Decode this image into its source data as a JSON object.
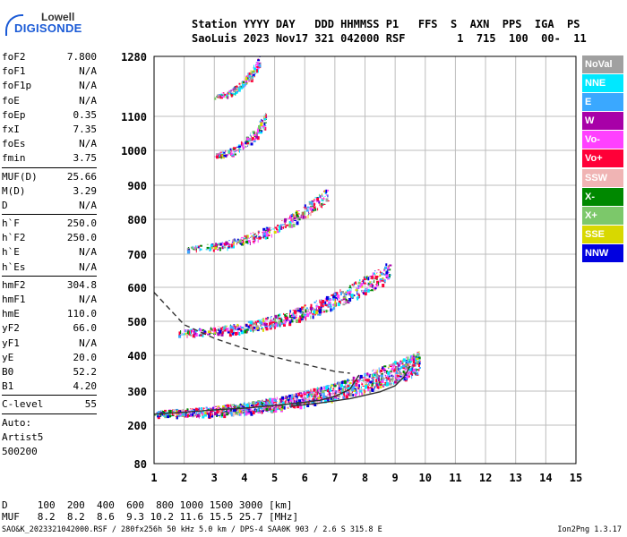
{
  "logo": {
    "line1": "Lowell",
    "line2": "DIGISONDE"
  },
  "header": {
    "line1": "Station YYYY DAY   DDD HHMMSS P1   FFS  S  AXN  PPS  IGA  PS",
    "line2": "SaoLuis 2023 Nov17 321 042000 RSF        1  715  100  00-  11"
  },
  "params": {
    "group1": [
      {
        "k": "foF2",
        "v": "7.800"
      },
      {
        "k": "foF1",
        "v": "N/A"
      },
      {
        "k": "foF1p",
        "v": "N/A"
      },
      {
        "k": "foE",
        "v": "N/A"
      },
      {
        "k": "foEp",
        "v": "0.35"
      },
      {
        "k": "fxI",
        "v": "7.35"
      },
      {
        "k": "foEs",
        "v": "N/A"
      },
      {
        "k": "fmin",
        "v": "3.75"
      }
    ],
    "group2": [
      {
        "k": "MUF(D)",
        "v": "25.66"
      },
      {
        "k": "M(D)",
        "v": "3.29"
      },
      {
        "k": "D",
        "v": "N/A"
      }
    ],
    "group3": [
      {
        "k": "h`F",
        "v": "250.0"
      },
      {
        "k": "h`F2",
        "v": "250.0"
      },
      {
        "k": "h`E",
        "v": "N/A"
      },
      {
        "k": "h`Es",
        "v": "N/A"
      }
    ],
    "group4": [
      {
        "k": "hmF2",
        "v": "304.8"
      },
      {
        "k": "hmF1",
        "v": "N/A"
      },
      {
        "k": "hmE",
        "v": "110.0"
      },
      {
        "k": "yF2",
        "v": "66.0"
      },
      {
        "k": "yF1",
        "v": "N/A"
      },
      {
        "k": "yE",
        "v": "20.0"
      },
      {
        "k": "B0",
        "v": "52.2"
      },
      {
        "k": "B1",
        "v": "4.20"
      }
    ],
    "clevel": {
      "k": "C-level",
      "v": "55"
    },
    "auto": [
      "Auto:",
      "Artist5",
      "500200"
    ]
  },
  "legend": [
    {
      "label": "NoVal",
      "color": "#a0a0a0"
    },
    {
      "label": "NNE",
      "color": "#00e8ff"
    },
    {
      "label": "E",
      "color": "#3aa8ff"
    },
    {
      "label": "W",
      "color": "#a800a8"
    },
    {
      "label": "Vo-",
      "color": "#ff40ff"
    },
    {
      "label": "Vo+",
      "color": "#ff0038"
    },
    {
      "label": "SSW",
      "color": "#f0b4b4"
    },
    {
      "label": "X-",
      "color": "#008800"
    },
    {
      "label": "X+",
      "color": "#7cc86a"
    },
    {
      "label": "SSE",
      "color": "#d8d800"
    },
    {
      "label": "NNW",
      "color": "#0000e0"
    }
  ],
  "footer": {
    "line1": "D     100  200  400  600  800 1000 1500 3000 [km]",
    "line2": "MUF   8.2  8.2  8.6  9.3 10.2 11.6 15.5 25.7 [MHz]",
    "info": "SAO&K_2023321042000.RSF / 280fx256h 50 kHz 5.0 km / DPS-4 SAA0K 903 / 2.6 S 315.8 E",
    "version": "Ion2Png 1.3.17"
  },
  "chart_data": {
    "type": "scatter",
    "xlabel": "",
    "ylabel": "",
    "xlim": [
      1,
      15
    ],
    "ylim": [
      80,
      1280
    ],
    "x_ticks": [
      1,
      2,
      3,
      4,
      5,
      6,
      7,
      8,
      9,
      10,
      11,
      12,
      13,
      14,
      15
    ],
    "y_ticks": [
      80,
      200,
      300,
      400,
      500,
      600,
      700,
      800,
      900,
      1000,
      1100,
      1280
    ],
    "grid": true,
    "traces": [
      {
        "name": "O-trace F layer",
        "color": "#333333",
        "style": "solid",
        "x": [
          1.0,
          2.0,
          3.0,
          4.0,
          5.0,
          6.0,
          6.5,
          7.0,
          7.5,
          7.8
        ],
        "y": [
          232,
          238,
          245,
          250,
          258,
          267,
          273,
          285,
          305,
          345
        ]
      },
      {
        "name": "X-trace F layer",
        "color": "#333333",
        "style": "solid",
        "x": [
          5.5,
          6.5,
          7.5,
          8.5,
          9.0,
          9.3,
          9.5
        ],
        "y": [
          255,
          265,
          278,
          298,
          315,
          340,
          370
        ]
      },
      {
        "name": "Electron density profile",
        "color": "#333333",
        "style": "dashed",
        "x": [
          1.0,
          2.0,
          3.0,
          4.0,
          5.0,
          6.0,
          7.0,
          7.5
        ],
        "y": [
          585,
          490,
          450,
          420,
          395,
          375,
          355,
          350
        ]
      }
    ],
    "echo_bands": [
      {
        "x_start": 1.0,
        "x_end": 9.8,
        "y_start": 232,
        "y_end": 370,
        "spread": 45
      },
      {
        "x_start": 1.8,
        "x_end": 8.8,
        "y_start": 465,
        "y_end": 640,
        "spread": 40
      },
      {
        "x_start": 2.0,
        "x_end": 6.8,
        "y_start": 715,
        "y_end": 870,
        "spread": 30
      },
      {
        "x_start": 3.0,
        "x_end": 4.7,
        "y_start": 985,
        "y_end": 1085,
        "spread": 30
      },
      {
        "x_start": 3.0,
        "x_end": 4.5,
        "y_start": 1160,
        "y_end": 1260,
        "spread": 25
      }
    ]
  }
}
